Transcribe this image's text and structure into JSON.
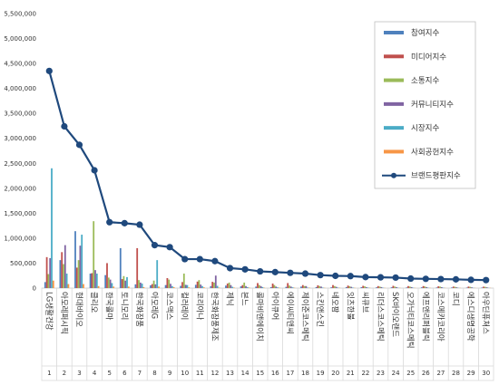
{
  "chart_data": {
    "type": "bar",
    "ylim": [
      0,
      5500000
    ],
    "y_ticks": [
      "0",
      "500,000",
      "1,000,000",
      "1,500,000",
      "2,000,000",
      "2,500,000",
      "3,000,000",
      "3,500,000",
      "4,000,000",
      "4,500,000",
      "5,000,000",
      "5,500,000"
    ],
    "legend_placement": "top-right",
    "grid": false,
    "categories": [
      {
        "rank": "1",
        "name": "LG생활건강"
      },
      {
        "rank": "2",
        "name": "아모레퍼시픽"
      },
      {
        "rank": "3",
        "name": "현대바이오"
      },
      {
        "rank": "4",
        "name": "클리오"
      },
      {
        "rank": "5",
        "name": "한국콜마"
      },
      {
        "rank": "6",
        "name": "토니모리"
      },
      {
        "rank": "7",
        "name": "한국화장품"
      },
      {
        "rank": "8",
        "name": "아모레G"
      },
      {
        "rank": "9",
        "name": "코스맥스"
      },
      {
        "rank": "10",
        "name": "컬러레이"
      },
      {
        "rank": "11",
        "name": "코리아나"
      },
      {
        "rank": "12",
        "name": "한국화장품제조"
      },
      {
        "rank": "13",
        "name": "제닉"
      },
      {
        "rank": "14",
        "name": "본느"
      },
      {
        "rank": "15",
        "name": "콜마비앤에이치"
      },
      {
        "rank": "16",
        "name": "아이큐어"
      },
      {
        "rank": "17",
        "name": "에이씨티앤씨"
      },
      {
        "rank": "18",
        "name": "제이준코스메틱"
      },
      {
        "rank": "19",
        "name": "스킨앤스킨"
      },
      {
        "rank": "20",
        "name": "네오팜"
      },
      {
        "rank": "21",
        "name": "잇츠한불"
      },
      {
        "rank": "22",
        "name": "씨큐브"
      },
      {
        "rank": "23",
        "name": "리더스코스메틱"
      },
      {
        "rank": "24",
        "name": "SK바이오랜드"
      },
      {
        "rank": "25",
        "name": "오가닉티코스메틱"
      },
      {
        "rank": "26",
        "name": "에프앤리퍼블릭"
      },
      {
        "rank": "27",
        "name": "코스메카코리아"
      },
      {
        "rank": "28",
        "name": "코디"
      },
      {
        "rank": "29",
        "name": "에스디생명공학"
      },
      {
        "rank": "30",
        "name": "아우딘퓨쳐스"
      }
    ],
    "series": [
      {
        "name": "참여지수",
        "color": "#4f81bd",
        "values": [
          120000,
          560000,
          1140000,
          290000,
          260000,
          800000,
          75000,
          55000,
          60000,
          45000,
          65000,
          40000,
          50000,
          35000,
          30000,
          20000,
          25000,
          30000,
          20000,
          15000,
          20000,
          18000,
          15000,
          15000,
          12000,
          15000,
          12000,
          12000,
          10000,
          10000
        ]
      },
      {
        "name": "미디어지수",
        "color": "#c0504d",
        "values": [
          620000,
          720000,
          410000,
          300000,
          500000,
          180000,
          800000,
          80000,
          200000,
          120000,
          130000,
          125000,
          90000,
          60000,
          100000,
          90000,
          100000,
          60000,
          55000,
          60000,
          50000,
          45000,
          40000,
          45000,
          40000,
          40000,
          35000,
          30000,
          30000,
          28000
        ]
      },
      {
        "name": "소통지수",
        "color": "#9bbb59",
        "values": [
          280000,
          480000,
          560000,
          1340000,
          210000,
          240000,
          160000,
          150000,
          170000,
          290000,
          160000,
          110000,
          110000,
          110000,
          60000,
          60000,
          50000,
          40000,
          40000,
          40000,
          35000,
          35000,
          30000,
          30000,
          30000,
          30000,
          30000,
          25000,
          25000,
          25000
        ]
      },
      {
        "name": "커뮤니티지수",
        "color": "#8064a2",
        "values": [
          600000,
          860000,
          850000,
          360000,
          170000,
          150000,
          110000,
          75000,
          85000,
          65000,
          70000,
          250000,
          60000,
          40000,
          40000,
          30000,
          30000,
          40000,
          30000,
          25000,
          25000,
          20000,
          20000,
          20000,
          20000,
          20000,
          18000,
          15000,
          15000,
          15000
        ]
      },
      {
        "name": "시장지수",
        "color": "#4bacc6",
        "values": [
          2400000,
          290000,
          1070000,
          290000,
          100000,
          220000,
          90000,
          560000,
          40000,
          60000,
          40000,
          45000,
          25000,
          20000,
          20000,
          15000,
          15000,
          10000,
          10000,
          10000,
          10000,
          10000,
          8000,
          8000,
          8000,
          8000,
          8000,
          6000,
          6000,
          6000
        ]
      },
      {
        "name": "사회공헌지수",
        "color": "#f79646",
        "values": [
          150000,
          80000,
          80000,
          40000,
          30000,
          30000,
          20000,
          30000,
          20000,
          15000,
          15000,
          10000,
          10000,
          10000,
          8000,
          8000,
          8000,
          8000,
          6000,
          6000,
          6000,
          6000,
          5000,
          5000,
          5000,
          5000,
          5000,
          4000,
          4000,
          4000
        ]
      }
    ],
    "line_series": {
      "name": "브랜드평판지수",
      "color": "#1f497d",
      "values": [
        4350000,
        3240000,
        2870000,
        2360000,
        1320000,
        1300000,
        1270000,
        860000,
        820000,
        580000,
        580000,
        540000,
        400000,
        375000,
        335000,
        320000,
        305000,
        290000,
        260000,
        245000,
        240000,
        220000,
        215000,
        210000,
        190000,
        185000,
        180000,
        175000,
        165000,
        160000
      ]
    }
  }
}
